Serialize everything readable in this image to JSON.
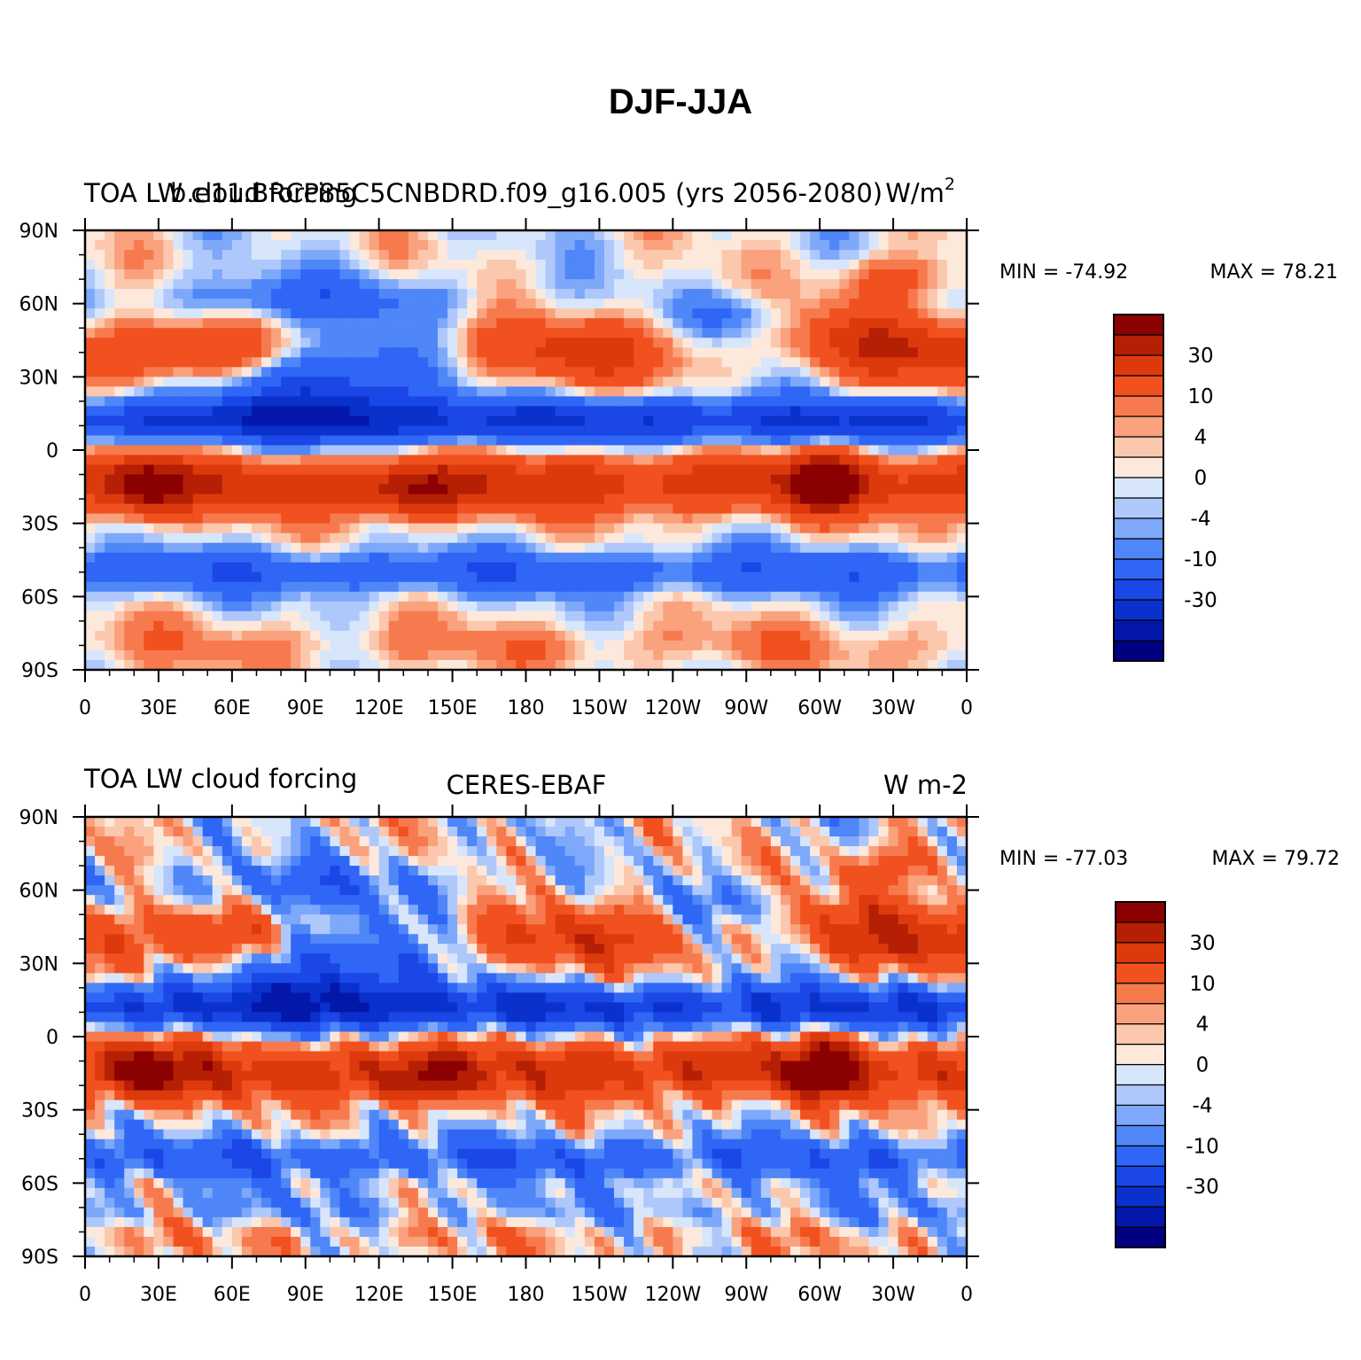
{
  "figure_title": "DJF-JJA",
  "colorbar_colors": [
    "#000080",
    "#0318AA",
    "#0A31CC",
    "#1A47E6",
    "#2F66F5",
    "#4F86F8",
    "#7EA8F9",
    "#AFC8FB",
    "#D8E6FC",
    "#FDE9DC",
    "#FCC8AD",
    "#F9A27D",
    "#F77A4E",
    "#F1511F",
    "#DC3A0D",
    "#B51F04",
    "#8B0000"
  ],
  "colorbar_labels": [
    "-30",
    "-10",
    "-4",
    "0",
    "4",
    "10",
    "30"
  ],
  "chart_data": [
    {
      "type": "heatmap",
      "title_left": "TOA LW cloud forcing",
      "title_center": "b.e11.BRCP85C5CNBDRD.f09_g16.005 (yrs 2056-2080)",
      "units": "W/m",
      "units_superscript": "2",
      "min": -74.92,
      "max": 78.21,
      "min_label": "MIN = -74.92",
      "max_label": "MAX =  78.21",
      "x_ticks": [
        "0",
        "30E",
        "60E",
        "90E",
        "120E",
        "150E",
        "180",
        "150W",
        "120W",
        "90W",
        "60W",
        "30W",
        "0"
      ],
      "y_ticks": [
        "90N",
        "60N",
        "30N",
        "0",
        "30S",
        "60S",
        "90S"
      ],
      "contour_levels": [
        -40,
        -30,
        -20,
        -10,
        -6,
        -4,
        -2,
        0,
        2,
        4,
        6,
        10,
        20,
        30,
        40
      ]
    },
    {
      "type": "heatmap",
      "title_left": "TOA LW cloud forcing",
      "title_center": "CERES-EBAF",
      "units": "W m-2",
      "min": -77.03,
      "max": 79.72,
      "min_label": "MIN = -77.03",
      "max_label": "MAX =  79.72",
      "x_ticks": [
        "0",
        "30E",
        "60E",
        "90E",
        "120E",
        "150E",
        "180",
        "150W",
        "120W",
        "90W",
        "60W",
        "30W",
        "0"
      ],
      "y_ticks": [
        "90N",
        "60N",
        "30N",
        "0",
        "30S",
        "60S",
        "90S"
      ],
      "contour_levels": [
        -40,
        -30,
        -20,
        -10,
        -6,
        -4,
        -2,
        0,
        2,
        4,
        6,
        10,
        20,
        30,
        40
      ]
    }
  ]
}
